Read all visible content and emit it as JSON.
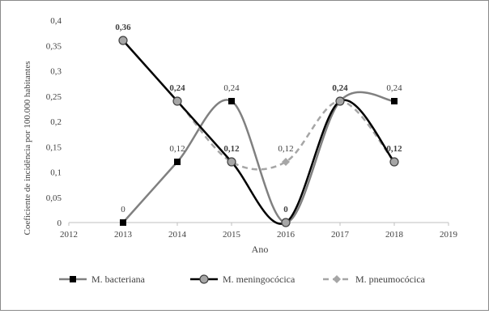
{
  "chart_data": {
    "type": "line",
    "xlabel": "Ano",
    "ylabel": "Coeficiente de incidência por 100.000 habitantes",
    "x_ticks": [
      "2012",
      "2013",
      "2014",
      "2015",
      "2016",
      "2017",
      "2018",
      "2019"
    ],
    "y_ticks": [
      "0",
      "0,05",
      "0,1",
      "0,15",
      "0,2",
      "0,25",
      "0,3",
      "0,35",
      "0,4"
    ],
    "xlim": [
      2012,
      2019
    ],
    "ylim": [
      0,
      0.4
    ],
    "grid": false,
    "legend_position": "bottom",
    "x": [
      2013,
      2014,
      2015,
      2016,
      2017,
      2018
    ],
    "series": [
      {
        "name": "M. bacteriana",
        "values": [
          0,
          0.12,
          0.24,
          0,
          0.24,
          0.24
        ],
        "color": "#808080",
        "marker": "square",
        "dash": "solid",
        "labels": [
          "0",
          "0,12",
          "0,24",
          "0",
          "0,24",
          "0,24"
        ],
        "labels_bold": [
          false,
          false,
          false,
          true,
          false,
          false
        ]
      },
      {
        "name": "M. meningocócica",
        "values": [
          0.36,
          0.24,
          0.12,
          0,
          0.24,
          0.12
        ],
        "color": "#000000",
        "marker": "circle",
        "dash": "solid",
        "labels": [
          "0,36",
          "0,24",
          "0,12",
          "",
          "0,24",
          "0,12"
        ],
        "labels_bold": [
          true,
          true,
          true,
          false,
          true,
          true
        ]
      },
      {
        "name": "M. pneumocócica",
        "values": [
          0.36,
          0.24,
          0.12,
          0.12,
          0.24,
          0.12
        ],
        "color": "#a6a6a6",
        "marker": "diamond",
        "dash": "dashed",
        "labels": [
          "",
          "",
          "",
          "0,12",
          "",
          ""
        ],
        "labels_bold": [
          false,
          false,
          false,
          false,
          false,
          false
        ]
      }
    ]
  }
}
